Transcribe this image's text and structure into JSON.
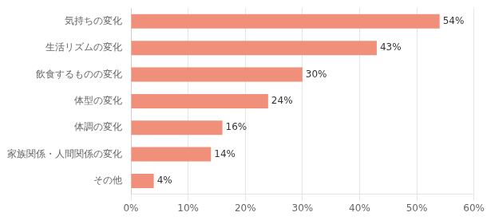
{
  "chart_data": {
    "type": "bar",
    "orientation": "horizontal",
    "categories": [
      "その他",
      "家族関係・人間関係の変化",
      "体調の変化",
      "体型の変化",
      "飲食するものの変化",
      "生活リズムの変化",
      "気持ちの変化"
    ],
    "values": [
      4,
      14,
      16,
      24,
      30,
      43,
      54
    ],
    "value_labels": [
      "4%",
      "14%",
      "16%",
      "24%",
      "30%",
      "43%",
      "54%"
    ],
    "data_labels": true,
    "color": "#f0907a",
    "xlim": [
      0,
      60
    ],
    "xticks": [
      {
        "value": 0,
        "label": "0%"
      },
      {
        "value": 10,
        "label": "10%"
      },
      {
        "value": 20,
        "label": "20%"
      },
      {
        "value": 30,
        "label": "30%"
      },
      {
        "value": 40,
        "label": "40%"
      },
      {
        "value": 50,
        "label": "50%"
      },
      {
        "value": 60,
        "label": "60%"
      }
    ],
    "grid": true
  }
}
